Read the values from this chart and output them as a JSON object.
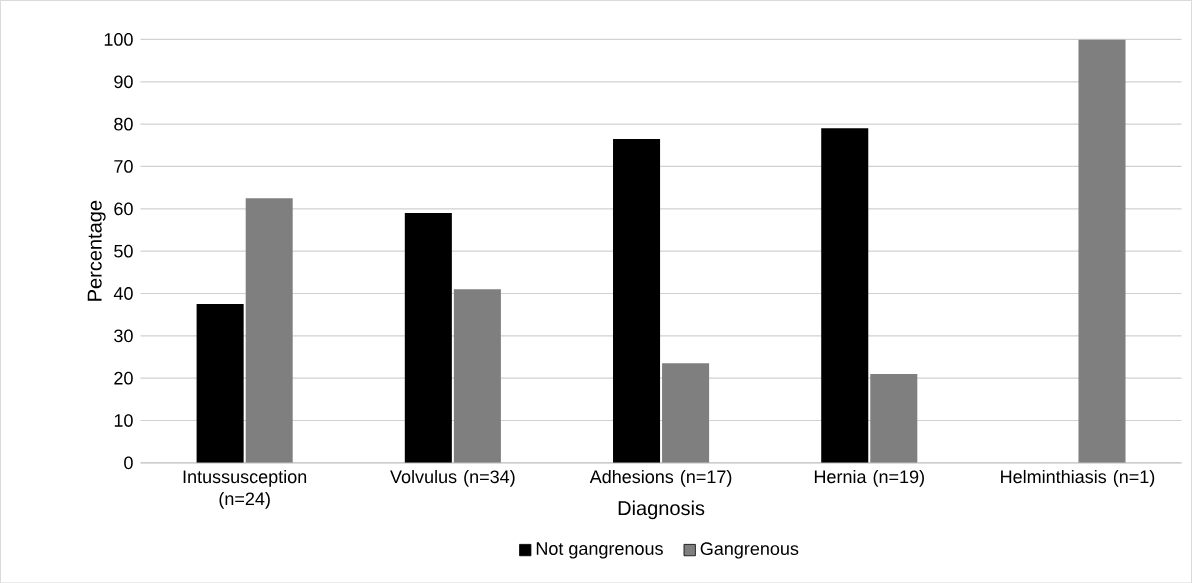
{
  "chart_data": {
    "type": "bar",
    "xlabel": "Diagnosis",
    "ylabel": "Percentage",
    "categories": [
      "Intussusception (n=24)",
      "Volvulus (n=34)",
      "Adhesions (n=17)",
      "Hernia (n=19)",
      "Helminthiasis (n=1)"
    ],
    "series": [
      {
        "name": "Not gangrenous",
        "color": "#000000",
        "values": [
          37.5,
          59,
          76.5,
          79,
          0
        ]
      },
      {
        "name": "Gangrenous",
        "color": "#7f7f7f",
        "values": [
          62.5,
          41,
          23.5,
          21,
          100
        ]
      }
    ],
    "ylim": [
      0,
      100
    ],
    "yticks": [
      0,
      10,
      20,
      30,
      40,
      50,
      60,
      70,
      80,
      90,
      100
    ],
    "grid": "y",
    "legend": "bottom"
  }
}
